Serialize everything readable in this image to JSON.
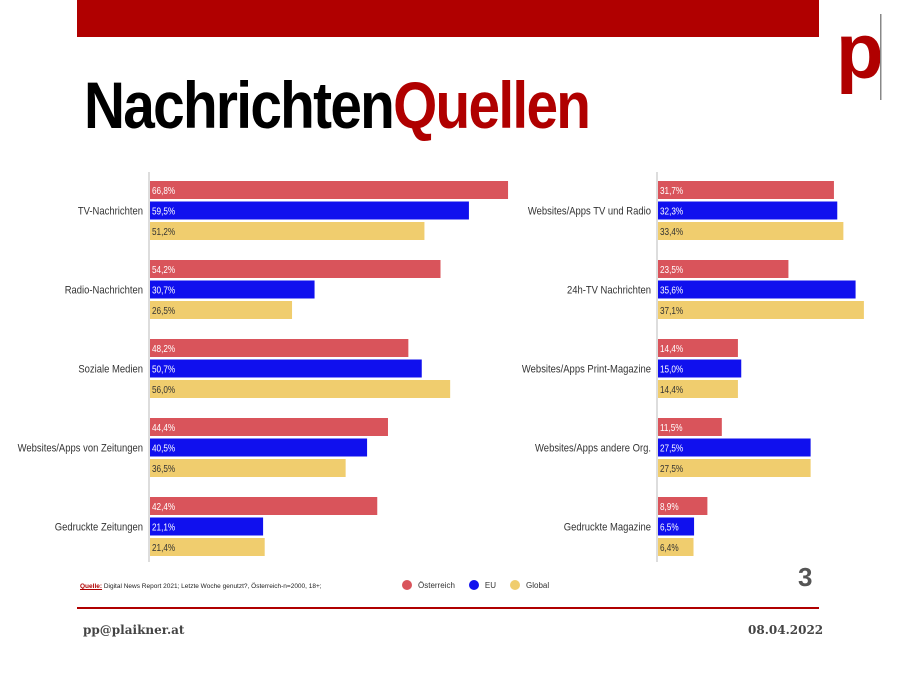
{
  "title": {
    "part1": "Nachrichten",
    "part2": "Quellen"
  },
  "logo": {
    "letter": "p"
  },
  "colors": {
    "brand": "#b00000",
    "oesterreich": "#d9545b",
    "eu": "#1010ee",
    "global": "#f0cd6e"
  },
  "chart_data": [
    {
      "type": "bar",
      "orientation": "horizontal",
      "categories": [
        "TV-Nachrichten",
        "Radio-Nachrichten",
        "Soziale Medien",
        "Websites/Apps von Zeitungen",
        "Gedruckte Zeitungen"
      ],
      "series": [
        {
          "name": "Österreich",
          "values": [
            66.8,
            54.2,
            48.2,
            44.4,
            42.4
          ],
          "labels": [
            "66,8%",
            "54,2%",
            "48,2%",
            "44,4%",
            "42,4%"
          ]
        },
        {
          "name": "EU",
          "values": [
            59.5,
            30.7,
            50.7,
            40.5,
            21.1
          ],
          "labels": [
            "59,5%",
            "30,7%",
            "50,7%",
            "40,5%",
            "21,1%"
          ]
        },
        {
          "name": "Global",
          "values": [
            51.2,
            26.5,
            56.0,
            36.5,
            21.4
          ],
          "labels": [
            "51,2%",
            "26,5%",
            "56,0%",
            "36,5%",
            "21,4%"
          ]
        }
      ]
    },
    {
      "type": "bar",
      "orientation": "horizontal",
      "categories": [
        "Websites/Apps TV und Radio",
        "24h-TV Nachrichten",
        "Websites/Apps Print-Magazine",
        "Websites/Apps andere Org.",
        "Gedruckte Magazine"
      ],
      "series": [
        {
          "name": "Österreich",
          "values": [
            31.7,
            23.5,
            14.4,
            11.5,
            8.9
          ],
          "labels": [
            "31,7%",
            "23,5%",
            "14,4%",
            "11,5%",
            "8,9%"
          ]
        },
        {
          "name": "EU",
          "values": [
            32.3,
            35.6,
            15.0,
            27.5,
            6.5
          ],
          "labels": [
            "32,3%",
            "35,6%",
            "15,0%",
            "27,5%",
            "6,5%"
          ]
        },
        {
          "name": "Global",
          "values": [
            33.4,
            37.1,
            14.4,
            27.5,
            6.4
          ],
          "labels": [
            "33,4%",
            "37,1%",
            "14,4%",
            "27,5%",
            "6,4%"
          ]
        }
      ]
    }
  ],
  "legend": [
    {
      "label": "Österreich",
      "color": "#d9545b"
    },
    {
      "label": "EU",
      "color": "#1010ee"
    },
    {
      "label": "Global",
      "color": "#f0cd6e"
    }
  ],
  "source": {
    "label": "Quelle:",
    "text": " Digital News Report 2021; Letzte Woche genutzt?, Österreich-n=2000, 18+;"
  },
  "slide_number": "3",
  "footer": {
    "email": "pp@plaikner.at",
    "date": "08.04.2022"
  }
}
